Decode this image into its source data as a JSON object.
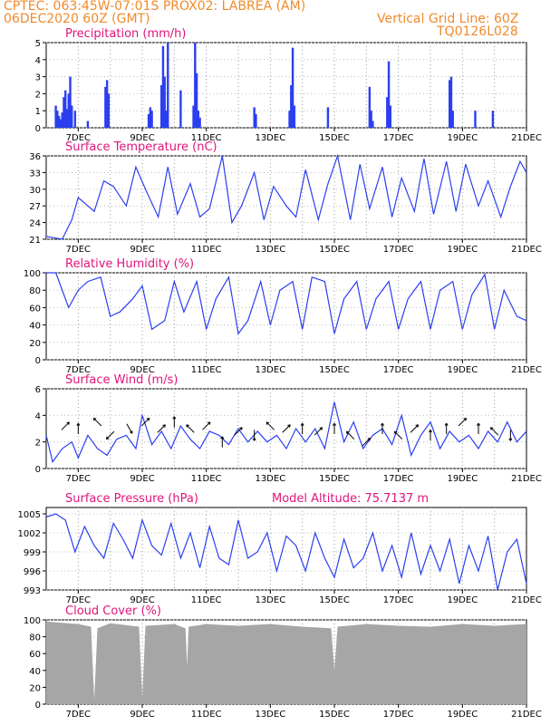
{
  "header": {
    "line1_left": "CPTEC:   063:45W-07:01S   PROX02: LABREA (AM)",
    "line2_left": "06DEC2020 60Z (GMT)",
    "line2_right": "Vertical Grid Line: 60Z",
    "line3_right": "TQ0126L028"
  },
  "colors": {
    "header": "#f08a2a",
    "title": "#e0147c",
    "line": "#2b3ff0",
    "bars": "#2b3ff0",
    "cloud": "#a6a6a6"
  },
  "x_axis": {
    "labels": [
      "7DEC",
      "9DEC",
      "11DEC",
      "13DEC",
      "15DEC",
      "17DEC",
      "19DEC",
      "21DEC"
    ]
  },
  "panels": [
    {
      "key": "precip",
      "title": "Precipitation (mm/h)",
      "extra": "",
      "yticks": [
        "0",
        "1",
        "2",
        "3",
        "4",
        "5"
      ]
    },
    {
      "key": "temp",
      "title": "Surface Temperature (nC)",
      "extra": "",
      "yticks": [
        "21",
        "24",
        "27",
        "30",
        "33",
        "36"
      ]
    },
    {
      "key": "rh",
      "title": "Relative Humidity (%)",
      "extra": "",
      "yticks": [
        "0",
        "20",
        "40",
        "60",
        "80",
        "100"
      ]
    },
    {
      "key": "wind",
      "title": "Surface Wind (m/s)",
      "extra": "",
      "yticks": [
        "0",
        "2",
        "4",
        "6"
      ]
    },
    {
      "key": "pres",
      "title": "Surface Pressure (hPa)",
      "extra": "Model Altitude: 75.7137 m",
      "yticks": [
        "993",
        "996",
        "999",
        "1002",
        "1005"
      ]
    },
    {
      "key": "cloud",
      "title": "Cloud Cover (%)",
      "extra": "",
      "yticks": [
        "0",
        "20",
        "40",
        "60",
        "80",
        "100"
      ]
    }
  ],
  "chart_data": [
    {
      "type": "bar",
      "title": "Precipitation (mm/h)",
      "ylim": [
        0,
        5
      ],
      "x_days": [
        6.3,
        6.35,
        6.4,
        6.45,
        6.5,
        6.55,
        6.6,
        6.65,
        6.7,
        6.75,
        6.8,
        6.9,
        7.3,
        7.85,
        7.9,
        7.95,
        9.2,
        9.25,
        9.3,
        9.6,
        9.65,
        9.7,
        9.75,
        9.8,
        10.2,
        10.6,
        10.65,
        10.7,
        10.75,
        10.8,
        12.5,
        12.55,
        13.6,
        13.65,
        13.7,
        13.75,
        14.8,
        16.1,
        16.15,
        16.2,
        16.65,
        16.7,
        16.75,
        18.6,
        18.65,
        18.7,
        19.4,
        19.95
      ],
      "values": [
        1.3,
        1.0,
        0.7,
        0.5,
        0.9,
        1.8,
        2.2,
        1.1,
        2.0,
        3.0,
        1.3,
        1.0,
        0.4,
        2.4,
        2.8,
        2.0,
        0.8,
        1.2,
        1.0,
        2.5,
        4.8,
        3.0,
        1.0,
        5.0,
        2.2,
        1.3,
        5.0,
        3.2,
        1.0,
        0.6,
        1.2,
        0.8,
        1.0,
        2.5,
        4.7,
        1.3,
        1.2,
        2.4,
        1.0,
        0.4,
        1.8,
        3.9,
        1.3,
        2.8,
        3.0,
        1.0,
        1.0,
        1.0
      ]
    },
    {
      "type": "line",
      "title": "Surface Temperature (nC)",
      "ylim": [
        21,
        36
      ],
      "x": [
        6.0,
        6.5,
        6.8,
        7.0,
        7.3,
        7.5,
        7.8,
        8.1,
        8.5,
        8.8,
        9.1,
        9.5,
        9.8,
        10.1,
        10.5,
        10.8,
        11.1,
        11.5,
        11.8,
        12.1,
        12.5,
        12.8,
        13.1,
        13.5,
        13.8,
        14.1,
        14.5,
        14.8,
        15.1,
        15.5,
        15.8,
        16.1,
        16.5,
        16.8,
        17.1,
        17.5,
        17.8,
        18.1,
        18.5,
        18.8,
        19.1,
        19.5,
        19.8,
        20.2,
        20.5,
        20.8,
        21.0
      ],
      "y": [
        21.5,
        21.0,
        24.5,
        28.5,
        27.0,
        26.0,
        31.5,
        30.5,
        27.0,
        34.0,
        30.0,
        25.0,
        34.0,
        25.5,
        31.0,
        25.0,
        26.5,
        36.0,
        24.0,
        27.0,
        33.0,
        24.5,
        30.5,
        27.0,
        25.0,
        33.5,
        24.5,
        31.0,
        36.0,
        24.5,
        34.5,
        26.5,
        34.0,
        25.0,
        32.0,
        26.0,
        35.5,
        25.5,
        35.0,
        26.0,
        34.5,
        27.0,
        31.5,
        25.0,
        30.5,
        35.0,
        33.0
      ]
    },
    {
      "type": "line",
      "title": "Relative Humidity (%)",
      "ylim": [
        0,
        100
      ],
      "x": [
        6.0,
        6.3,
        6.7,
        7.0,
        7.3,
        7.7,
        8.0,
        8.3,
        8.7,
        9.0,
        9.3,
        9.7,
        10.0,
        10.3,
        10.7,
        11.0,
        11.3,
        11.7,
        12.0,
        12.3,
        12.7,
        13.0,
        13.3,
        13.7,
        14.0,
        14.3,
        14.7,
        15.0,
        15.3,
        15.7,
        16.0,
        16.3,
        16.7,
        17.0,
        17.3,
        17.7,
        18.0,
        18.3,
        18.7,
        19.0,
        19.3,
        19.7,
        20.0,
        20.3,
        20.7,
        21.0
      ],
      "y": [
        100,
        100,
        60,
        80,
        90,
        95,
        50,
        55,
        70,
        85,
        35,
        45,
        90,
        55,
        90,
        35,
        70,
        95,
        30,
        45,
        90,
        40,
        80,
        90,
        35,
        95,
        90,
        30,
        70,
        90,
        35,
        70,
        90,
        35,
        70,
        90,
        35,
        80,
        90,
        35,
        75,
        98,
        35,
        80,
        50,
        45
      ]
    },
    {
      "type": "line",
      "title": "Surface Wind (m/s)",
      "ylim": [
        0,
        6
      ],
      "x": [
        6.0,
        6.2,
        6.5,
        6.8,
        7.0,
        7.3,
        7.6,
        7.9,
        8.2,
        8.5,
        8.8,
        9.0,
        9.3,
        9.6,
        9.9,
        10.2,
        10.5,
        10.8,
        11.1,
        11.4,
        11.7,
        12.0,
        12.3,
        12.6,
        12.9,
        13.2,
        13.5,
        13.8,
        14.1,
        14.4,
        14.7,
        15.0,
        15.3,
        15.6,
        15.9,
        16.2,
        16.5,
        16.8,
        17.1,
        17.4,
        17.7,
        18.0,
        18.3,
        18.6,
        18.9,
        19.2,
        19.5,
        19.8,
        20.1,
        20.4,
        20.7,
        21.0
      ],
      "y": [
        2.5,
        0.5,
        1.5,
        2.0,
        0.8,
        2.5,
        1.5,
        1.0,
        2.2,
        2.5,
        1.5,
        4.0,
        1.8,
        2.8,
        1.5,
        3.2,
        2.2,
        1.5,
        2.8,
        2.5,
        1.8,
        3.0,
        2.0,
        2.8,
        2.0,
        2.5,
        1.5,
        3.0,
        2.0,
        3.0,
        1.5,
        5.0,
        2.0,
        3.5,
        1.5,
        2.5,
        3.0,
        1.8,
        4.0,
        1.0,
        2.5,
        3.5,
        1.5,
        2.8,
        2.0,
        2.5,
        1.5,
        2.8,
        2.0,
        3.5,
        2.0,
        2.8
      ]
    },
    {
      "type": "line",
      "title": "Surface Pressure (hPa)",
      "ylim": [
        993,
        1006
      ],
      "x": [
        6.0,
        6.3,
        6.6,
        6.9,
        7.2,
        7.5,
        7.8,
        8.1,
        8.4,
        8.7,
        9.0,
        9.3,
        9.6,
        9.9,
        10.2,
        10.5,
        10.8,
        11.1,
        11.4,
        11.7,
        12.0,
        12.3,
        12.6,
        12.9,
        13.2,
        13.5,
        13.8,
        14.1,
        14.4,
        14.7,
        15.0,
        15.3,
        15.6,
        15.9,
        16.2,
        16.5,
        16.8,
        17.1,
        17.4,
        17.7,
        18.0,
        18.3,
        18.6,
        18.9,
        19.2,
        19.5,
        19.8,
        20.1,
        20.4,
        20.7,
        21.0
      ],
      "y": [
        1004.5,
        1005.0,
        1004.0,
        999.0,
        1003.0,
        1000.0,
        998.0,
        1003.5,
        1001.0,
        998.0,
        1004.0,
        1000.0,
        998.5,
        1003.5,
        998.0,
        1002.0,
        996.5,
        1003.0,
        998.0,
        997.0,
        1004.0,
        998.0,
        999.0,
        1002.0,
        996.0,
        1001.5,
        1000.0,
        996.0,
        1002.0,
        998.0,
        995.0,
        1001.0,
        996.5,
        998.0,
        1002.0,
        996.0,
        1000.0,
        995.0,
        1002.0,
        995.5,
        1000.0,
        996.0,
        1001.0,
        994.0,
        1000.0,
        996.0,
        1001.5,
        993.0,
        999.0,
        1001.0,
        994.0
      ]
    },
    {
      "type": "area",
      "title": "Cloud Cover (%)",
      "ylim": [
        0,
        100
      ],
      "x": [
        6.0,
        7.0,
        7.4,
        7.5,
        7.6,
        8.0,
        8.9,
        9.0,
        9.1,
        10.0,
        10.35,
        10.4,
        10.45,
        11.0,
        12.0,
        13.0,
        14.0,
        14.9,
        15.0,
        15.1,
        16.0,
        17.0,
        18.0,
        19.0,
        20.0,
        21.0
      ],
      "y": [
        98,
        95,
        92,
        5,
        90,
        96,
        92,
        8,
        93,
        95,
        90,
        45,
        92,
        95,
        93,
        95,
        92,
        90,
        40,
        92,
        95,
        93,
        92,
        95,
        93,
        95
      ]
    }
  ],
  "wind_barbs": {
    "x_days": [
      6.6,
      7.0,
      7.6,
      8.0,
      8.6,
      9.1,
      9.6,
      10.0,
      10.5,
      11.0,
      11.5,
      12.0,
      12.5,
      13.0,
      13.5,
      14.0,
      14.5,
      15.0,
      15.5,
      16.0,
      16.5,
      17.0,
      17.5,
      18.0,
      18.5,
      19.0,
      19.5,
      20.0,
      20.5
    ],
    "y": [
      3.2,
      3.0,
      3.5,
      2.5,
      3.0,
      3.5,
      3.0,
      3.5,
      3.0,
      3.2,
      2.0,
      2.8,
      2.5,
      3.2,
      3.0,
      3.0,
      2.8,
      3.0,
      2.5,
      2.0,
      3.0,
      2.5,
      3.0,
      2.5,
      3.0,
      3.5,
      3.0,
      2.8,
      2.5
    ],
    "dir_deg": [
      45,
      90,
      135,
      225,
      300,
      45,
      45,
      90,
      135,
      45,
      90,
      45,
      270,
      135,
      45,
      90,
      45,
      90,
      135,
      45,
      90,
      135,
      45,
      90,
      90,
      45,
      90,
      135,
      270
    ]
  }
}
